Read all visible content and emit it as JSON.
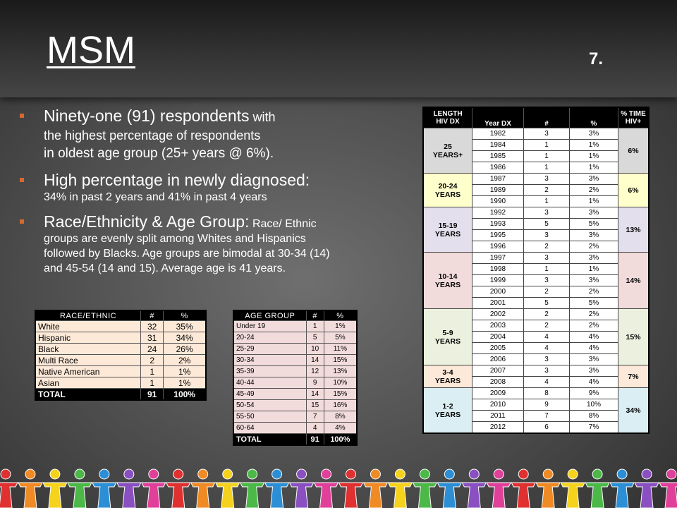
{
  "slide": {
    "title": "MSM",
    "number": "7."
  },
  "bullets": [
    {
      "head": "Ninety-one (91) respondents",
      "rest": " with",
      "line2": "the highest percentage of respondents",
      "line3": "in oldest age group (25+ years @ 6%)."
    },
    {
      "head": "High percentage in newly diagnosed:",
      "line2": "34% in past 2 years and 41% in past 4 years"
    },
    {
      "head": "Race/Ethnicity & Age Group:",
      "rest": " Race/ Ethnic",
      "line2": "groups are evenly split among Whites  and Hispanics",
      "line3": "followed by Blacks.  Age groups are bimodal at 30-34 (14)",
      "line4": "and 45-54 (14 and 15).  Average age is 41 years."
    }
  ],
  "race_table": {
    "headers": [
      "RACE/ETHNIC",
      "#",
      "%"
    ],
    "rows": [
      [
        "White",
        "32",
        "35%"
      ],
      [
        "Hispanic",
        "31",
        "34%"
      ],
      [
        "Black",
        "24",
        "26%"
      ],
      [
        "Multi Race",
        "2",
        "2%"
      ],
      [
        "Native American",
        "1",
        "1%"
      ],
      [
        "Asian",
        "1",
        "1%"
      ]
    ],
    "total": [
      "TOTAL",
      "91",
      "100%"
    ]
  },
  "age_table": {
    "headers": [
      "AGE GROUP",
      "#",
      "%"
    ],
    "rows": [
      [
        "Under 19",
        "1",
        "1%"
      ],
      [
        "20-24",
        "5",
        "5%"
      ],
      [
        "25-29",
        "10",
        "11%"
      ],
      [
        "30-34",
        "14",
        "15%"
      ],
      [
        "35-39",
        "12",
        "13%"
      ],
      [
        "40-44",
        "9",
        "10%"
      ],
      [
        "45-49",
        "14",
        "15%"
      ],
      [
        "50-54",
        "15",
        "16%"
      ],
      [
        "55-50",
        "7",
        "8%"
      ],
      [
        "60-64",
        "4",
        "4%"
      ]
    ],
    "total": [
      "TOTAL",
      "91",
      "100%"
    ]
  },
  "length_table": {
    "headers": {
      "length_line1": "LENGTH",
      "length_line2": "HIV DX",
      "year": "Year DX",
      "num": "#",
      "pct": "%",
      "time_line1": "% TIME",
      "time_line2": "HIV+"
    },
    "groups": [
      {
        "line1": "25",
        "line2": "YEARS+",
        "pct_time": "6%",
        "rows": [
          [
            "1982",
            "3",
            "3%"
          ],
          [
            "1984",
            "1",
            "1%"
          ],
          [
            "1985",
            "1",
            "1%"
          ],
          [
            "1986",
            "1",
            "1%"
          ]
        ]
      },
      {
        "line1": "20-24",
        "line2": "YEARS",
        "pct_time": "6%",
        "rows": [
          [
            "1987",
            "3",
            "3%"
          ],
          [
            "1989",
            "2",
            "2%"
          ],
          [
            "1990",
            "1",
            "1%"
          ]
        ]
      },
      {
        "line1": "15-19",
        "line2": "YEARS",
        "pct_time": "13%",
        "rows": [
          [
            "1992",
            "3",
            "3%"
          ],
          [
            "1993",
            "5",
            "5%"
          ],
          [
            "1995",
            "3",
            "3%"
          ],
          [
            "1996",
            "2",
            "2%"
          ]
        ]
      },
      {
        "line1": "10-14",
        "line2": "YEARS",
        "pct_time": "14%",
        "rows": [
          [
            "1997",
            "3",
            "3%"
          ],
          [
            "1998",
            "1",
            "1%"
          ],
          [
            "1999",
            "3",
            "3%"
          ],
          [
            "2000",
            "2",
            "2%"
          ],
          [
            "2001",
            "5",
            "5%"
          ]
        ]
      },
      {
        "line1": "5-9",
        "line2": "YEARS",
        "pct_time": "15%",
        "rows": [
          [
            "2002",
            "2",
            "2%"
          ],
          [
            "2003",
            "2",
            "2%"
          ],
          [
            "2004",
            "4",
            "4%"
          ],
          [
            "2005",
            "4",
            "4%"
          ],
          [
            "2006",
            "3",
            "3%"
          ]
        ]
      },
      {
        "line1": "3-4",
        "line2": "YEARS",
        "pct_time": "7%",
        "rows": [
          [
            "2007",
            "3",
            "3%"
          ],
          [
            "2008",
            "4",
            "4%"
          ]
        ]
      },
      {
        "line1": "1-2",
        "line2": "YEARS",
        "pct_time": "34%",
        "rows": [
          [
            "2009",
            "8",
            "9%"
          ],
          [
            "2010",
            "9",
            "10%"
          ],
          [
            "2011",
            "7",
            "8%"
          ],
          [
            "2012",
            "6",
            "7%"
          ]
        ]
      }
    ]
  },
  "decoration": {
    "figure_colors": [
      "#e03030",
      "#f08a24",
      "#f5d21c",
      "#4cb848",
      "#2c8fd6",
      "#8a4fc1",
      "#e0409a"
    ]
  }
}
